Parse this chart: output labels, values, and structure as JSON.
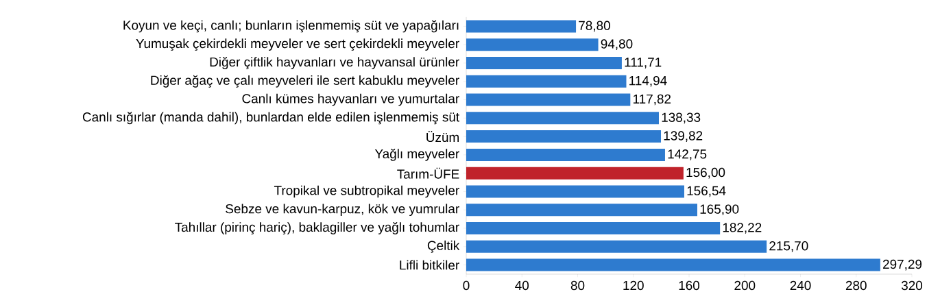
{
  "chart_data": {
    "type": "bar",
    "orientation": "horizontal",
    "categories": [
      "Koyun ve keçi, canlı; bunların işlenmemiş süt ve yapağıları",
      "Yumuşak çekirdekli meyveler ve sert çekirdekli meyveler",
      "Diğer çiftlik hayvanları ve hayvansal ürünler",
      "Diğer ağaç ve çalı meyveleri ile sert kabuklu meyveler",
      "Canlı kümes hayvanları ve yumurtalar",
      "Canlı sığırlar (manda dahil), bunlardan elde edilen işlenmemiş süt",
      "Üzüm",
      "Yağlı meyveler",
      "Tarım-ÜFE",
      "Tropikal ve subtropikal meyveler",
      "Sebze ve kavun-karpuz, kök ve yumrular",
      "Tahıllar (pirinç hariç), baklagiller ve yağlı tohumlar",
      "Çeltik",
      "Lifli bitkiler"
    ],
    "values": [
      78.8,
      94.8,
      111.71,
      114.94,
      117.82,
      138.33,
      139.82,
      142.75,
      156.0,
      156.54,
      165.9,
      182.22,
      215.7,
      297.29
    ],
    "value_labels": [
      "78,80",
      "94,80",
      "111,71",
      "114,94",
      "117,82",
      "138,33",
      "139,82",
      "142,75",
      "156,00",
      "156,54",
      "165,90",
      "182,22",
      "215,70",
      "297,29"
    ],
    "colors": [
      "#2e7bcf",
      "#2e7bcf",
      "#2e7bcf",
      "#2e7bcf",
      "#2e7bcf",
      "#2e7bcf",
      "#2e7bcf",
      "#2e7bcf",
      "#c0232b",
      "#2e7bcf",
      "#2e7bcf",
      "#2e7bcf",
      "#2e7bcf",
      "#2e7bcf"
    ],
    "xlim": [
      0,
      320
    ],
    "xticks": [
      0,
      40,
      80,
      120,
      160,
      200,
      240,
      280,
      320
    ],
    "grid": false
  }
}
